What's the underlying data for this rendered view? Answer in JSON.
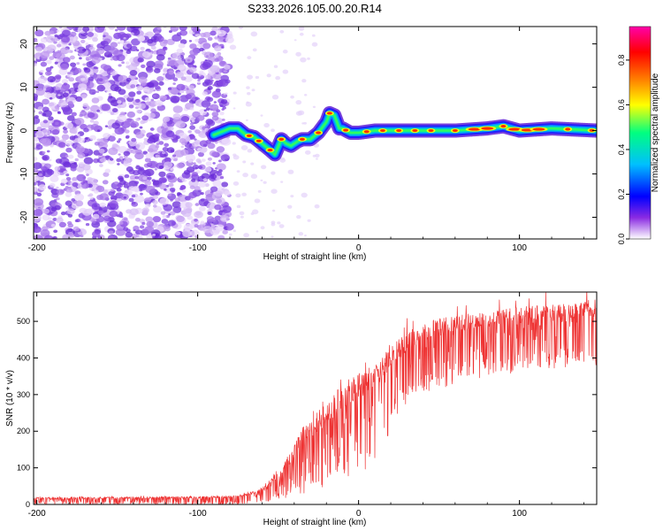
{
  "figure": {
    "title": "S233.2026.105.00.20.R14"
  },
  "chart_data": [
    {
      "type": "heatmap",
      "name": "spectrogram",
      "xlabel": "Height of straight line (km)",
      "ylabel": "Frequency (Hz)",
      "xlim": [
        -202,
        148
      ],
      "ylim": [
        -25,
        24
      ],
      "xticks": [
        -200,
        -100,
        0,
        100
      ],
      "xtick_labels": [
        "-200",
        "-100",
        "0",
        "100"
      ],
      "yticks": [
        -20,
        -10,
        0,
        10,
        20
      ],
      "ytick_labels": [
        "-20",
        "-10",
        "0",
        "10",
        "20"
      ],
      "noise_region_end_km": -85,
      "ridge": {
        "x": [
          -90,
          -80,
          -75,
          -70,
          -65,
          -60,
          -55,
          -52,
          -48,
          -45,
          -42,
          -38,
          -35,
          -30,
          -25,
          -20,
          -18,
          -15,
          -12,
          -10,
          -5,
          0,
          10,
          20,
          40,
          60,
          80,
          90,
          100,
          120,
          148
        ],
        "y": [
          -1,
          0.5,
          0.5,
          -1,
          -1.5,
          -3,
          -4.5,
          -5.5,
          -2,
          -3,
          -3.5,
          -2.5,
          -2,
          -2,
          -0.5,
          2,
          4,
          3.5,
          0.5,
          0.5,
          -0.5,
          -0.5,
          0,
          0,
          0,
          0,
          0.5,
          1,
          0,
          0.5,
          0
        ]
      },
      "hot_spots_km": [
        -68,
        -62,
        -55,
        -48,
        -35,
        -25,
        -18,
        -8,
        5,
        15,
        25,
        35,
        45,
        60,
        72,
        80,
        90,
        97,
        105,
        112,
        130,
        145
      ],
      "colorbar": {
        "label": "Normalized spectral amplitude",
        "range": [
          0,
          0.95
        ],
        "ticks": [
          0.0,
          0.2,
          0.4,
          0.6,
          0.8
        ],
        "tick_labels": [
          "0.0",
          "0.2",
          "0.4",
          "0.6",
          "0.8"
        ],
        "colors": [
          "#ffffff",
          "#8a2be2",
          "#0000ff",
          "#00bfff",
          "#00ff80",
          "#ffff00",
          "#ff8000",
          "#ff0000",
          "#ff00aa"
        ]
      }
    },
    {
      "type": "line",
      "name": "snr",
      "xlabel": "Height of straight line (km)",
      "ylabel": "SNR (10 * v/v)",
      "xlim": [
        -202,
        148
      ],
      "ylim": [
        0,
        580
      ],
      "xticks": [
        -200,
        -100,
        0,
        100
      ],
      "xtick_labels": [
        "-200",
        "-100",
        "0",
        "100"
      ],
      "yticks": [
        0,
        100,
        200,
        300,
        400,
        500
      ],
      "ytick_labels": [
        "0",
        "100",
        "200",
        "300",
        "400",
        "500"
      ],
      "color": "#ee3333",
      "envelope": {
        "x": [
          -202,
          -100,
          -80,
          -70,
          -60,
          -50,
          -40,
          -35,
          -30,
          -20,
          -10,
          0,
          10,
          20,
          30,
          40,
          60,
          80,
          100,
          120,
          148
        ],
        "upper": [
          20,
          22,
          24,
          30,
          45,
          90,
          160,
          210,
          230,
          280,
          330,
          360,
          380,
          430,
          470,
          500,
          520,
          525,
          540,
          545,
          560
        ],
        "lower": [
          0,
          0,
          0,
          3,
          8,
          10,
          20,
          30,
          35,
          50,
          60,
          80,
          120,
          200,
          260,
          300,
          330,
          350,
          360,
          370,
          380
        ]
      }
    }
  ]
}
